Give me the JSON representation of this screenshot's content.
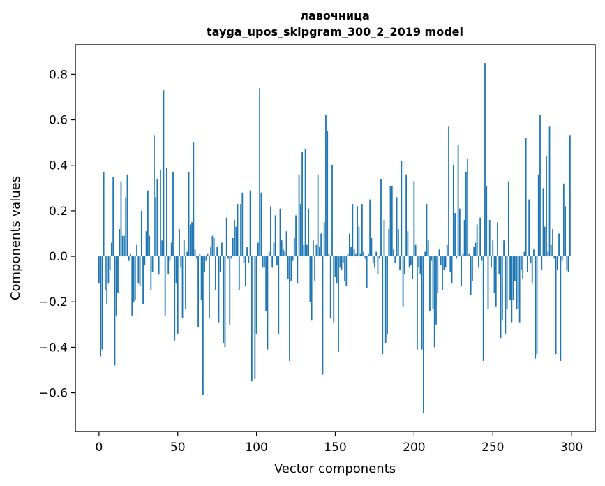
{
  "chart_data": {
    "type": "bar",
    "title": "лавочница",
    "subtitle": "tayga_upos_skipgram_300_2_2019 model",
    "xlabel": "Vector components",
    "ylabel": "Components values",
    "xlim": [
      -15,
      315
    ],
    "ylim": [
      -0.77,
      0.93
    ],
    "xticks": [
      0,
      50,
      100,
      150,
      200,
      250,
      300
    ],
    "xtick_labels": [
      "0",
      "50",
      "100",
      "150",
      "200",
      "250",
      "300"
    ],
    "yticks": [
      -0.6,
      -0.4,
      -0.2,
      0.0,
      0.2,
      0.4,
      0.6,
      0.8
    ],
    "ytick_labels": [
      "−0.6",
      "−0.4",
      "−0.2",
      "0.0",
      "0.2",
      "0.4",
      "0.6",
      "0.8"
    ],
    "bar_color": "#1f77b4",
    "grid": false,
    "x": [
      0,
      1,
      2,
      3,
      4,
      5,
      6,
      7,
      8,
      9,
      10,
      11,
      12,
      13,
      14,
      15,
      16,
      17,
      18,
      19,
      20,
      21,
      22,
      23,
      24,
      25,
      26,
      27,
      28,
      29,
      30,
      31,
      32,
      33,
      34,
      35,
      36,
      37,
      38,
      39,
      40,
      41,
      42,
      43,
      44,
      45,
      46,
      47,
      48,
      49,
      50,
      51,
      52,
      53,
      54,
      55,
      56,
      57,
      58,
      59,
      60,
      61,
      62,
      63,
      64,
      65,
      66,
      67,
      68,
      69,
      70,
      71,
      72,
      73,
      74,
      75,
      76,
      77,
      78,
      79,
      80,
      81,
      82,
      83,
      84,
      85,
      86,
      87,
      88,
      89,
      90,
      91,
      92,
      93,
      94,
      95,
      96,
      97,
      98,
      99,
      100,
      101,
      102,
      103,
      104,
      105,
      106,
      107,
      108,
      109,
      110,
      111,
      112,
      113,
      114,
      115,
      116,
      117,
      118,
      119,
      120,
      121,
      122,
      123,
      124,
      125,
      126,
      127,
      128,
      129,
      130,
      131,
      132,
      133,
      134,
      135,
      136,
      137,
      138,
      139,
      140,
      141,
      142,
      143,
      144,
      145,
      146,
      147,
      148,
      149,
      150,
      151,
      152,
      153,
      154,
      155,
      156,
      157,
      158,
      159,
      160,
      161,
      162,
      163,
      164,
      165,
      166,
      167,
      168,
      169,
      170,
      171,
      172,
      173,
      174,
      175,
      176,
      177,
      178,
      179,
      180,
      181,
      182,
      183,
      184,
      185,
      186,
      187,
      188,
      189,
      190,
      191,
      192,
      193,
      194,
      195,
      196,
      197,
      198,
      199,
      200,
      201,
      202,
      203,
      204,
      205,
      206,
      207,
      208,
      209,
      210,
      211,
      212,
      213,
      214,
      215,
      216,
      217,
      218,
      219,
      220,
      221,
      222,
      223,
      224,
      225,
      226,
      227,
      228,
      229,
      230,
      231,
      232,
      233,
      234,
      235,
      236,
      237,
      238,
      239,
      240,
      241,
      242,
      243,
      244,
      245,
      246,
      247,
      248,
      249,
      250,
      251,
      252,
      253,
      254,
      255,
      256,
      257,
      258,
      259,
      260,
      261,
      262,
      263,
      264,
      265,
      266,
      267,
      268,
      269,
      270,
      271,
      272,
      273,
      274,
      275,
      276,
      277,
      278,
      279,
      280,
      281,
      282,
      283,
      284,
      285,
      286,
      287,
      288,
      289,
      290,
      291,
      292,
      293,
      294,
      295,
      296,
      297,
      298,
      299
    ],
    "values": [
      -0.12,
      -0.44,
      -0.41,
      0.37,
      -0.15,
      -0.21,
      -0.12,
      -0.06,
      0.06,
      0.35,
      -0.48,
      -0.26,
      -0.16,
      0.12,
      0.33,
      0.09,
      0.09,
      0.26,
      0.36,
      -0.02,
      0.01,
      -0.26,
      -0.2,
      -0.19,
      0.05,
      -0.12,
      -0.13,
      0.2,
      -0.21,
      -0.04,
      0.11,
      0.29,
      0.09,
      -0.15,
      -0.07,
      0.53,
      0.26,
      0.34,
      -0.08,
      0.38,
      0.07,
      0.73,
      -0.26,
      0.39,
      -0.08,
      -0.02,
      0.06,
      0.37,
      -0.37,
      -0.12,
      -0.34,
      0.12,
      -0.05,
      -0.27,
      0.07,
      -0.23,
      0.02,
      0.37,
      0.14,
      0.15,
      0.5,
      0.03,
      -0.01,
      -0.31,
      0.01,
      -0.19,
      -0.61,
      -0.07,
      -0.02,
      0.01,
      -0.27,
      0.04,
      0.09,
      0.08,
      -0.15,
      0.04,
      -0.29,
      -0.07,
      0.06,
      -0.38,
      -0.4,
      0.17,
      -0.01,
      -0.3,
      -0.01,
      0.08,
      0.16,
      0.13,
      0.23,
      -0.15,
      0.23,
      0.28,
      -0.03,
      -0.13,
      0.04,
      -0.03,
      0.29,
      -0.55,
      0.0,
      -0.54,
      -0.34,
      0.06,
      0.74,
      0.28,
      -0.05,
      -0.05,
      -0.24,
      -0.41,
      0.02,
      0.22,
      -0.05,
      0.06,
      0.18,
      -0.04,
      -0.34,
      0.21,
      0.07,
      0.03,
      0.02,
      0.11,
      -0.1,
      -0.46,
      -0.11,
      -0.02,
      0.08,
      0.18,
      -0.12,
      0.36,
      0.23,
      0.46,
      0.05,
      0.47,
      0.05,
      0.21,
      -0.2,
      -0.28,
      0.07,
      -0.11,
      0.05,
      0.36,
      0.04,
      0.1,
      -0.52,
      0.15,
      0.62,
      0.55,
      0.01,
      -0.27,
      0.4,
      -0.29,
      -0.09,
      -0.12,
      -0.42,
      -0.05,
      -0.06,
      -0.03,
      -0.11,
      -0.13,
      0.01,
      0.1,
      0.04,
      0.23,
      0.03,
      0.01,
      0.22,
      0.13,
      0.01,
      0.23,
      0.02,
      -0.01,
      -0.14,
      0.01,
      0.25,
      0.08,
      -0.03,
      -0.05,
      0.02,
      -0.08,
      -0.01,
      0.34,
      -0.43,
      0.16,
      -0.38,
      -0.34,
      0.12,
      0.31,
      0.31,
      0.03,
      -0.03,
      0.26,
      0.12,
      -0.06,
      0.42,
      -0.22,
      -0.08,
      0.36,
      0.11,
      -0.05,
      -0.04,
      -0.1,
      0.33,
      0.05,
      -0.41,
      -0.05,
      -0.08,
      -0.41,
      -0.69,
      0.02,
      0.23,
      0.07,
      -0.24,
      -0.02,
      -0.23,
      -0.4,
      -0.3,
      -0.16,
      0.03,
      -0.04,
      -0.15,
      -0.06,
      -0.05,
      0.05,
      0.57,
      -0.07,
      -0.12,
      0.4,
      0.19,
      -0.01,
      0.49,
      0.21,
      -0.13,
      0.01,
      0.16,
      0.37,
      0.43,
      0.01,
      -0.17,
      -0.11,
      0.04,
      0.06,
      0.14,
      -0.05,
      0.17,
      -0.02,
      -0.46,
      0.85,
      0.31,
      -0.23,
      0.16,
      -0.05,
      0.07,
      -0.16,
      -0.22,
      0.15,
      -0.08,
      -0.36,
      -0.28,
      0.07,
      -0.34,
      -0.23,
      0.33,
      -0.19,
      -0.29,
      -0.19,
      -0.11,
      -0.23,
      -0.23,
      -0.29,
      -0.06,
      -0.1,
      0.02,
      0.52,
      -0.07,
      0.25,
      -0.03,
      -0.12,
      0.03,
      -0.45,
      -0.43,
      0.36,
      0.62,
      -0.06,
      0.3,
      0.13,
      0.44,
      0.02,
      0.57,
      0.05,
      0.12,
      -0.01,
      -0.43,
      -0.06,
      0.1,
      -0.46,
      -0.02,
      0.32,
      0.22,
      -0.06,
      -0.07,
      0.53
    ]
  }
}
